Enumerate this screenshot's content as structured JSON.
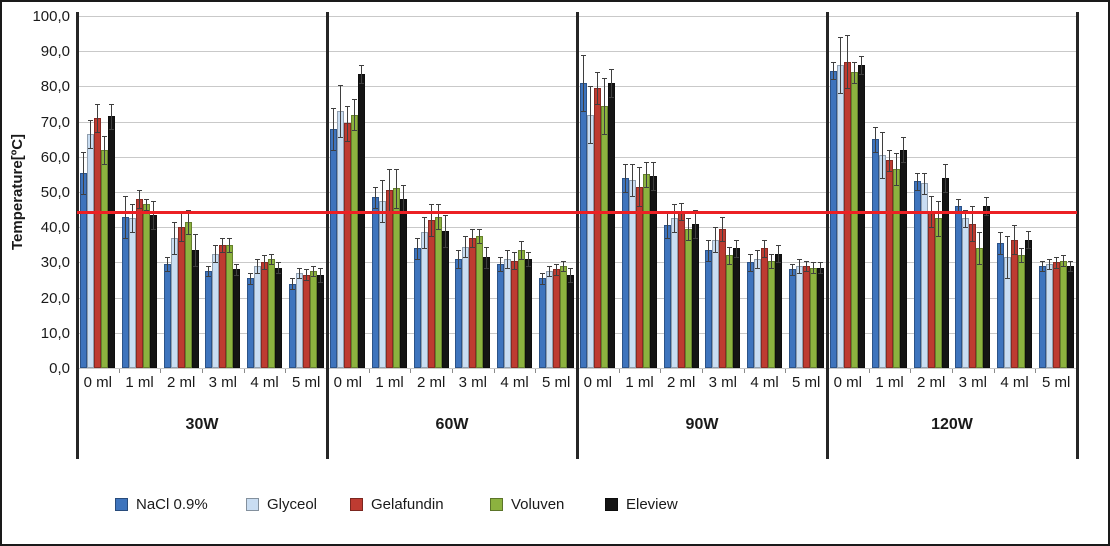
{
  "chart_data": {
    "type": "bar",
    "title": "",
    "ylabel": "Temperature[ºC]",
    "xlabel": "",
    "ylim": [
      0,
      100
    ],
    "ytick_step": 10,
    "ytick_labels": [
      "100,0",
      "90,0",
      "80,0",
      "70,0",
      "60,0",
      "50,0",
      "40,0",
      "30,0",
      "20,0",
      "10,0",
      "0,0"
    ],
    "categories": [
      "0 ml",
      "1 ml",
      "2 ml",
      "3 ml",
      "4 ml",
      "5 ml"
    ],
    "series_names": [
      "NaCl 0.9%",
      "Glyceol",
      "Gelafundin",
      "Voluven",
      "Eleview"
    ],
    "series_colors": [
      "#3e74bd",
      "#c9ddf2",
      "#be3b31",
      "#8cb23f",
      "#141414"
    ],
    "error_bars": true,
    "grid": "horizontal",
    "legend_position": "bottom",
    "reference_line": {
      "value": 44.3,
      "color": "#ec2024"
    },
    "panels": [
      {
        "label": "30W",
        "series": [
          {
            "name": "NaCl 0.9%",
            "values": [
              55.5,
              43.0,
              29.5,
              27.5,
              25.5,
              24.0
            ],
            "errors": [
              6,
              6,
              2,
              1.5,
              1.5,
              1.5
            ]
          },
          {
            "name": "Glyceol",
            "values": [
              66.5,
              42.5,
              37.0,
              32.5,
              29.0,
              27.0
            ],
            "errors": [
              4,
              4,
              4.5,
              2.5,
              2,
              1.5
            ]
          },
          {
            "name": "Gelafundin",
            "values": [
              71.0,
              48.0,
              40.0,
              35.0,
              30.0,
              26.5
            ],
            "errors": [
              4,
              2.5,
              4,
              2,
              2,
              1.5
            ]
          },
          {
            "name": "Voluven",
            "values": [
              62.0,
              46.5,
              41.5,
              35.0,
              31.0,
              27.5
            ],
            "errors": [
              4,
              1.5,
              3.5,
              2,
              1.5,
              1.5
            ]
          },
          {
            "name": "Eleview",
            "values": [
              71.5,
              43.5,
              33.5,
              28.0,
              28.5,
              26.5
            ],
            "errors": [
              3.5,
              4,
              4.5,
              1.5,
              1.5,
              2
            ]
          }
        ]
      },
      {
        "label": "60W",
        "series": [
          {
            "name": "NaCl 0.9%",
            "values": [
              68.0,
              48.5,
              34.0,
              31.0,
              29.5,
              25.5
            ],
            "errors": [
              6,
              3,
              3,
              2.5,
              2,
              1.5
            ]
          },
          {
            "name": "Glyceol",
            "values": [
              73.0,
              47.5,
              38.5,
              34.5,
              31.0,
              27.5
            ],
            "errors": [
              7.5,
              6,
              4.5,
              3,
              2.5,
              1.5
            ]
          },
          {
            "name": "Gelafundin",
            "values": [
              69.5,
              50.5,
              42.0,
              37.0,
              30.5,
              28.0
            ],
            "errors": [
              5,
              6,
              4.5,
              2.5,
              2.5,
              1.5
            ]
          },
          {
            "name": "Voluven",
            "values": [
              72.0,
              51.0,
              43.0,
              37.5,
              33.5,
              29.0
            ],
            "errors": [
              4.5,
              5.5,
              3.5,
              2,
              2.5,
              1.5
            ]
          },
          {
            "name": "Eleview",
            "values": [
              83.5,
              48.0,
              39.0,
              31.5,
              31.0,
              26.5
            ],
            "errors": [
              2.5,
              4,
              4.5,
              3,
              2,
              2
            ]
          }
        ]
      },
      {
        "label": "90W",
        "series": [
          {
            "name": "NaCl 0.9%",
            "values": [
              81.0,
              54.0,
              40.5,
              33.5,
              30.0,
              28.0
            ],
            "errors": [
              8,
              4,
              3.5,
              3,
              2.5,
              1.5
            ]
          },
          {
            "name": "Glyceol",
            "values": [
              72.0,
              53.5,
              42.5,
              36.5,
              31.0,
              29.0
            ],
            "errors": [
              8,
              4.5,
              4,
              3.5,
              2.5,
              2
            ]
          },
          {
            "name": "Gelafundin",
            "values": [
              79.5,
              51.5,
              44.5,
              39.5,
              34.0,
              29.0
            ],
            "errors": [
              4.5,
              5.5,
              2.5,
              3.5,
              2.5,
              1.5
            ]
          },
          {
            "name": "Voluven",
            "values": [
              74.5,
              55.0,
              39.5,
              32.0,
              30.5,
              28.5
            ],
            "errors": [
              8,
              3.5,
              3,
              2.5,
              2,
              1.5
            ]
          },
          {
            "name": "Eleview",
            "values": [
              81.0,
              54.5,
              41.0,
              34.0,
              32.5,
              28.5
            ],
            "errors": [
              4,
              4,
              4,
              2.5,
              2.5,
              1.5
            ]
          }
        ]
      },
      {
        "label": "120W",
        "series": [
          {
            "name": "NaCl 0.9%",
            "values": [
              84.5,
              65.0,
              53.0,
              46.0,
              35.5,
              29.0
            ],
            "errors": [
              2.5,
              3.5,
              2.5,
              2,
              3,
              1.5
            ]
          },
          {
            "name": "Glyceol",
            "values": [
              86.0,
              60.5,
              52.5,
              42.5,
              31.5,
              29.5
            ],
            "errors": [
              8,
              6.5,
              3,
              2.5,
              6,
              1.5
            ]
          },
          {
            "name": "Gelafundin",
            "values": [
              87.0,
              59.0,
              44.5,
              41.0,
              36.5,
              30.0
            ],
            "errors": [
              7.5,
              3,
              4.5,
              5,
              4,
              1.5
            ]
          },
          {
            "name": "Voluven",
            "values": [
              84.0,
              56.5,
              42.5,
              34.0,
              32.0,
              30.5
            ],
            "errors": [
              3,
              4.5,
              5,
              4.5,
              2,
              1.5
            ]
          },
          {
            "name": "Eleview",
            "values": [
              86.0,
              62.0,
              54.0,
              46.0,
              36.5,
              29.0
            ],
            "errors": [
              2.5,
              3.5,
              4,
              2.5,
              2.5,
              1.5
            ]
          }
        ]
      }
    ]
  },
  "legend": {
    "items": [
      {
        "label": "NaCl 0.9%",
        "color": "#3e74bd"
      },
      {
        "label": "Glyceol",
        "color": "#c9ddf2"
      },
      {
        "label": "Gelafundin",
        "color": "#be3b31"
      },
      {
        "label": "Voluven",
        "color": "#8cb23f"
      },
      {
        "label": "Eleview",
        "color": "#141414"
      }
    ]
  }
}
